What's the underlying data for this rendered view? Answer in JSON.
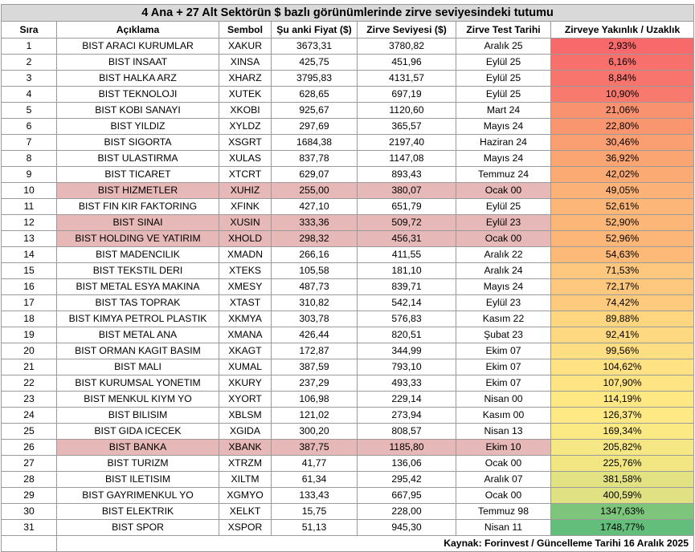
{
  "title": "4 Ana + 27 Alt Sektörün $ bazlı görünümlerinde zirve seviyesindeki tutumu",
  "headers": {
    "sira": "Sıra",
    "aciklama": "Açıklama",
    "sembol": "Sembol",
    "fiyat": "Şu anki Fiyat ($)",
    "zirve": "Zirve Seviyesi ($)",
    "tarih": "Zirve Test Tarihi",
    "yakinlik": "Zirveye Yakınlık /  Uzaklık"
  },
  "rows": [
    {
      "sira": "1",
      "aciklama": "BIST ARACI KURUMLAR",
      "sembol": "XAKUR",
      "fiyat": "3673,31",
      "zirve": "3780,82",
      "tarih": "Aralık 25",
      "yakinlik": "2,93%",
      "color": "#f8696b",
      "highlight": false
    },
    {
      "sira": "2",
      "aciklama": "BIST INSAAT",
      "sembol": "XINSA",
      "fiyat": "425,75",
      "zirve": "451,96",
      "tarih": "Eylül 25",
      "yakinlik": "6,16%",
      "color": "#f8706c",
      "highlight": false
    },
    {
      "sira": "3",
      "aciklama": "BIST HALKA ARZ",
      "sembol": "XHARZ",
      "fiyat": "3795,83",
      "zirve": "4131,57",
      "tarih": "Eylül 25",
      "yakinlik": "8,84%",
      "color": "#f8756d",
      "highlight": false
    },
    {
      "sira": "4",
      "aciklama": "BIST TEKNOLOJI",
      "sembol": "XUTEK",
      "fiyat": "628,65",
      "zirve": "697,19",
      "tarih": "Eylül 25",
      "yakinlik": "10,90%",
      "color": "#f87a6e",
      "highlight": false
    },
    {
      "sira": "5",
      "aciklama": "BIST KOBI SANAYI",
      "sembol": "XKOBI",
      "fiyat": "925,67",
      "zirve": "1120,60",
      "tarih": "Mart 24",
      "yakinlik": "21,06%",
      "color": "#f9926f",
      "highlight": false
    },
    {
      "sira": "6",
      "aciklama": "BIST YILDIZ",
      "sembol": "XYLDZ",
      "fiyat": "297,69",
      "zirve": "365,57",
      "tarih": "Mayıs 24",
      "yakinlik": "22,80%",
      "color": "#f99670",
      "highlight": false
    },
    {
      "sira": "7",
      "aciklama": "BIST SIGORTA",
      "sembol": "XSGRT",
      "fiyat": "1684,38",
      "zirve": "2197,40",
      "tarih": "Haziran 24",
      "yakinlik": "30,46%",
      "color": "#fa9f72",
      "highlight": false
    },
    {
      "sira": "8",
      "aciklama": "BIST ULASTIRMA",
      "sembol": "XULAS",
      "fiyat": "837,78",
      "zirve": "1147,08",
      "tarih": "Mayıs 24",
      "yakinlik": "36,92%",
      "color": "#fba573",
      "highlight": false
    },
    {
      "sira": "9",
      "aciklama": "BIST TICARET",
      "sembol": "XTCRT",
      "fiyat": "629,07",
      "zirve": "893,43",
      "tarih": "Temmuz 24",
      "yakinlik": "42,02%",
      "color": "#fbaa74",
      "highlight": false
    },
    {
      "sira": "10",
      "aciklama": "BIST HIZMETLER",
      "sembol": "XUHIZ",
      "fiyat": "255,00",
      "zirve": "380,07",
      "tarih": "Ocak 00",
      "yakinlik": "49,05%",
      "color": "#fcb276",
      "highlight": true
    },
    {
      "sira": "11",
      "aciklama": "BIST FIN KIR FAKTORING",
      "sembol": "XFINK",
      "fiyat": "427,10",
      "zirve": "651,79",
      "tarih": "Eylül 25",
      "yakinlik": "52,61%",
      "color": "#fcb677",
      "highlight": false
    },
    {
      "sira": "12",
      "aciklama": "BIST SINAI",
      "sembol": "XUSIN",
      "fiyat": "333,36",
      "zirve": "509,72",
      "tarih": "Eylül 23",
      "yakinlik": "52,90%",
      "color": "#fcb677",
      "highlight": true
    },
    {
      "sira": "13",
      "aciklama": "BIST HOLDING VE YATIRIM",
      "sembol": "XHOLD",
      "fiyat": "298,32",
      "zirve": "456,31",
      "tarih": "Ocak 00",
      "yakinlik": "52,96%",
      "color": "#fcb677",
      "highlight": true
    },
    {
      "sira": "14",
      "aciklama": "BIST MADENCILIK",
      "sembol": "XMADN",
      "fiyat": "266,16",
      "zirve": "411,55",
      "tarih": "Aralık 22",
      "yakinlik": "54,63%",
      "color": "#fcb978",
      "highlight": false
    },
    {
      "sira": "15",
      "aciklama": "BIST TEKSTIL DERI",
      "sembol": "XTEKS",
      "fiyat": "105,58",
      "zirve": "181,10",
      "tarih": "Aralık 24",
      "yakinlik": "71,53%",
      "color": "#fdc77d",
      "highlight": false
    },
    {
      "sira": "16",
      "aciklama": "BIST METAL ESYA MAKINA",
      "sembol": "XMESY",
      "fiyat": "487,73",
      "zirve": "839,71",
      "tarih": "Mayıs 24",
      "yakinlik": "72,17%",
      "color": "#fdc87d",
      "highlight": false
    },
    {
      "sira": "17",
      "aciklama": "BIST TAS TOPRAK",
      "sembol": "XTAST",
      "fiyat": "310,82",
      "zirve": "542,14",
      "tarih": "Eylül 23",
      "yakinlik": "74,42%",
      "color": "#fdca7e",
      "highlight": false
    },
    {
      "sira": "18",
      "aciklama": "BIST KIMYA PETROL PLASTIK",
      "sembol": "XKMYA",
      "fiyat": "303,78",
      "zirve": "576,83",
      "tarih": "Kasım 22",
      "yakinlik": "89,88%",
      "color": "#fed680",
      "highlight": false
    },
    {
      "sira": "19",
      "aciklama": "BIST METAL ANA",
      "sembol": "XMANA",
      "fiyat": "426,44",
      "zirve": "820,51",
      "tarih": "Şubat 23",
      "yakinlik": "92,41%",
      "color": "#fed981",
      "highlight": false
    },
    {
      "sira": "20",
      "aciklama": "BIST ORMAN KAGIT BASIM",
      "sembol": "XKAGT",
      "fiyat": "172,87",
      "zirve": "344,99",
      "tarih": "Ekim 07",
      "yakinlik": "99,56%",
      "color": "#fede82",
      "highlight": false
    },
    {
      "sira": "21",
      "aciklama": "BIST MALI",
      "sembol": "XUMAL",
      "fiyat": "387,59",
      "zirve": "793,10",
      "tarih": "Ekim 07",
      "yakinlik": "104,62%",
      "color": "#fee283",
      "highlight": false
    },
    {
      "sira": "22",
      "aciklama": "BIST KURUMSAL YONETIM",
      "sembol": "XKURY",
      "fiyat": "237,29",
      "zirve": "493,33",
      "tarih": "Ekim 07",
      "yakinlik": "107,90%",
      "color": "#fee483",
      "highlight": false
    },
    {
      "sira": "23",
      "aciklama": "BIST MENKUL KIYM YO",
      "sembol": "XYORT",
      "fiyat": "106,98",
      "zirve": "229,14",
      "tarih": "Nisan 00",
      "yakinlik": "114,19%",
      "color": "#fee884",
      "highlight": false
    },
    {
      "sira": "24",
      "aciklama": "BIST BILISIM",
      "sembol": "XBLSM",
      "fiyat": "121,02",
      "zirve": "273,94",
      "tarih": "Kasım 00",
      "yakinlik": "126,37%",
      "color": "#fee984",
      "highlight": false
    },
    {
      "sira": "25",
      "aciklama": "BIST GIDA ICECEK",
      "sembol": "XGIDA",
      "fiyat": "300,20",
      "zirve": "808,57",
      "tarih": "Nisan 13",
      "yakinlik": "169,34%",
      "color": "#fbe983",
      "highlight": false
    },
    {
      "sira": "26",
      "aciklama": "BIST BANKA",
      "sembol": "XBANK",
      "fiyat": "387,75",
      "zirve": "1185,80",
      "tarih": "Ekim 10",
      "yakinlik": "205,82%",
      "color": "#f5e783",
      "highlight": true
    },
    {
      "sira": "27",
      "aciklama": "BIST TURIZM",
      "sembol": "XTRZM",
      "fiyat": "41,77",
      "zirve": "136,06",
      "tarih": "Ocak 00",
      "yakinlik": "225,76%",
      "color": "#f1e682",
      "highlight": false
    },
    {
      "sira": "28",
      "aciklama": "BIST ILETISIM",
      "sembol": "XILTM",
      "fiyat": "61,34",
      "zirve": "295,42",
      "tarih": "Aralık 07",
      "yakinlik": "381,58%",
      "color": "#e3e282",
      "highlight": false
    },
    {
      "sira": "29",
      "aciklama": "BIST GAYRIMENKUL YO",
      "sembol": "XGMYO",
      "fiyat": "133,43",
      "zirve": "667,95",
      "tarih": "Ocak 00",
      "yakinlik": "400,59%",
      "color": "#e0e182",
      "highlight": false
    },
    {
      "sira": "30",
      "aciklama": "BIST ELEKTRIK",
      "sembol": "XELKT",
      "fiyat": "15,75",
      "zirve": "228,00",
      "tarih": "Temmuz 98",
      "yakinlik": "1347,63%",
      "color": "#7ec57c",
      "highlight": false
    },
    {
      "sira": "31",
      "aciklama": "BIST SPOR",
      "sembol": "XSPOR",
      "fiyat": "51,13",
      "zirve": "945,30",
      "tarih": "Nisan 11",
      "yakinlik": "1748,77%",
      "color": "#63be7b",
      "highlight": false
    }
  ],
  "footer": "Kaynak: Forinvest  / Güncelleme Tarihi 16 Aralık 2025"
}
